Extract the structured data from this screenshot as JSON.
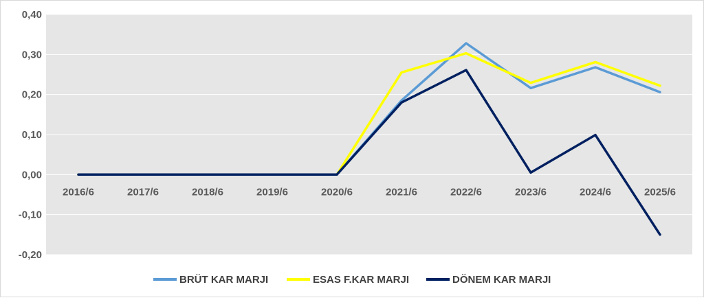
{
  "chart_data": {
    "type": "line",
    "title": "",
    "xlabel": "",
    "ylabel": "",
    "categories": [
      "2016/6",
      "2017/6",
      "2018/6",
      "2019/6",
      "2020/6",
      "2021/6",
      "2022/6",
      "2023/6",
      "2024/6",
      "2025/6"
    ],
    "ylim": [
      -0.2,
      0.4
    ],
    "yticks": [
      "0,40",
      "0,30",
      "0,20",
      "0,10",
      "0,00",
      "-0,10",
      "-0,20"
    ],
    "grid": true,
    "legend_position": "bottom",
    "series": [
      {
        "name": "BRÜT KAR MARJI",
        "color": "#5b9bd5",
        "values": [
          0,
          0,
          0,
          0,
          0,
          0.185,
          0.328,
          0.216,
          0.268,
          0.206
        ]
      },
      {
        "name": "ESAS F.KAR MARJI",
        "color": "#ffff00",
        "values": [
          0,
          0,
          0,
          0,
          0,
          0.255,
          0.303,
          0.229,
          0.281,
          0.222
        ]
      },
      {
        "name": "DÖNEM KAR MARJI",
        "color": "#002060",
        "values": [
          0,
          0,
          0,
          0,
          0,
          0.18,
          0.261,
          0.005,
          0.099,
          -0.15
        ]
      }
    ]
  }
}
